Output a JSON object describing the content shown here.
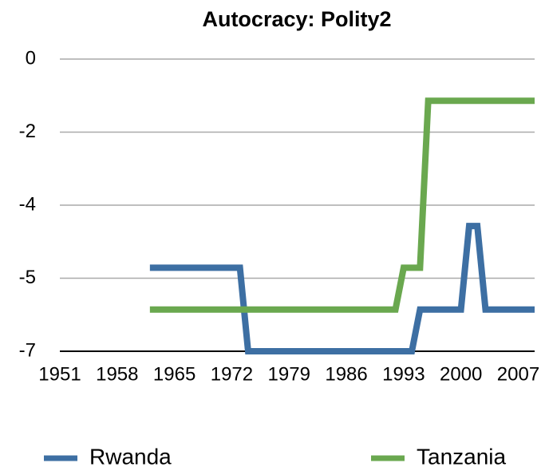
{
  "chart_data": {
    "type": "line",
    "title": "Autocracy: Polity2",
    "xlim": [
      1951,
      2009
    ],
    "xticks": [
      1951,
      1958,
      1965,
      1972,
      1979,
      1986,
      1993,
      2000,
      2007
    ],
    "ylim": [
      -7,
      0
    ],
    "yticks": [
      {
        "value": 0,
        "label": "0"
      },
      {
        "value": -1.75,
        "label": "-2"
      },
      {
        "value": -3.5,
        "label": "-4"
      },
      {
        "value": -5.25,
        "label": "-5"
      },
      {
        "value": -7,
        "label": "-7"
      }
    ],
    "grid": true,
    "series": [
      {
        "name": "Rwanda",
        "color": "#3d6fa3",
        "x": [
          1962,
          1973,
          1974,
          1994,
          1995,
          2000,
          2001,
          2002,
          2003,
          2009
        ],
        "values": [
          -5,
          -5,
          -7,
          -7,
          -6,
          -6,
          -4,
          -4,
          -6,
          -6
        ]
      },
      {
        "name": "Tanzania",
        "color": "#6aa84f",
        "x": [
          1962,
          1992,
          1993,
          1995,
          1996,
          2009
        ],
        "values": [
          -6,
          -6,
          -5,
          -5,
          -1,
          -1
        ]
      }
    ]
  }
}
